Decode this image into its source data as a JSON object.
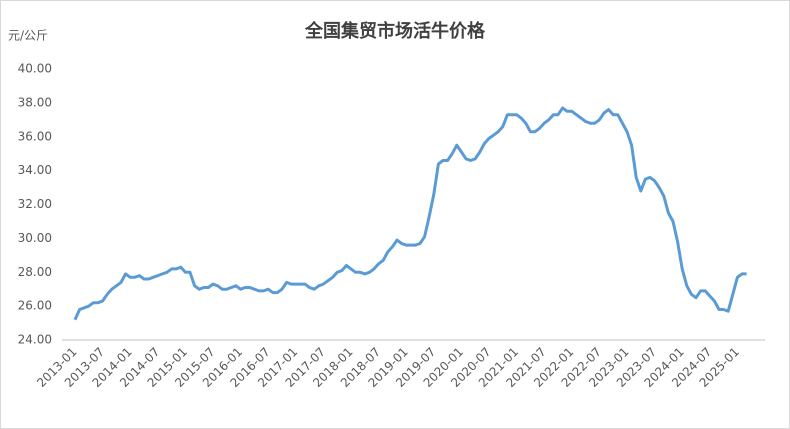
{
  "chart_data": {
    "type": "line",
    "title": "全国集贸市场活牛价格",
    "y_label": "元/公斤",
    "categories": [
      "2013-01",
      null,
      null,
      null,
      null,
      null,
      "2013-07",
      null,
      null,
      null,
      null,
      null,
      "2014-01",
      null,
      null,
      null,
      null,
      null,
      "2014-07",
      null,
      null,
      null,
      null,
      null,
      "2015-01",
      null,
      null,
      null,
      null,
      null,
      "2015-07",
      null,
      null,
      null,
      null,
      null,
      "2016-01",
      null,
      null,
      null,
      null,
      null,
      "2016-07",
      null,
      null,
      null,
      null,
      null,
      "2017-01",
      null,
      null,
      null,
      null,
      null,
      "2017-07",
      null,
      null,
      null,
      null,
      null,
      "2018-01",
      null,
      null,
      null,
      null,
      null,
      "2018-07",
      null,
      null,
      null,
      null,
      null,
      "2019-01",
      null,
      null,
      null,
      null,
      null,
      "2019-07",
      null,
      null,
      null,
      null,
      null,
      "2020-01",
      null,
      null,
      null,
      null,
      null,
      "2020-07",
      null,
      null,
      null,
      null,
      null,
      "2021-01",
      null,
      null,
      null,
      null,
      null,
      "2021-07",
      null,
      null,
      null,
      null,
      null,
      "2022-01",
      null,
      null,
      null,
      null,
      null,
      "2022-07",
      null,
      null,
      null,
      null,
      null,
      "2023-01",
      null,
      null,
      null,
      null,
      null,
      "2023-07",
      null,
      null,
      null,
      null,
      null,
      "2024-01",
      null,
      null,
      null,
      null,
      null,
      "2024-07",
      null,
      null,
      null,
      null,
      null,
      "2025-01",
      null,
      null
    ],
    "series": [
      {
        "color": "#5b9bd5",
        "values": [
          25.2,
          25.8,
          25.9,
          26.0,
          26.2,
          26.2,
          26.3,
          26.7,
          27.0,
          27.2,
          27.4,
          27.9,
          27.7,
          27.7,
          27.8,
          27.6,
          27.6,
          27.7,
          27.8,
          27.9,
          28.0,
          28.2,
          28.2,
          28.3,
          28.0,
          28.0,
          27.2,
          27.0,
          27.1,
          27.1,
          27.3,
          27.2,
          27.0,
          27.0,
          27.1,
          27.2,
          27.0,
          27.1,
          27.1,
          27.0,
          26.9,
          26.9,
          27.0,
          26.8,
          26.8,
          27.0,
          27.4,
          27.3,
          27.3,
          27.3,
          27.3,
          27.1,
          27.0,
          27.2,
          27.3,
          27.5,
          27.7,
          28.0,
          28.1,
          28.4,
          28.2,
          28.0,
          28.0,
          27.9,
          28.0,
          28.2,
          28.5,
          28.7,
          29.2,
          29.5,
          29.9,
          29.7,
          29.6,
          29.6,
          29.6,
          29.7,
          30.1,
          31.3,
          32.6,
          34.4,
          34.6,
          34.6,
          35.0,
          35.5,
          35.1,
          34.7,
          34.6,
          34.7,
          35.1,
          35.6,
          35.9,
          36.1,
          36.3,
          36.6,
          37.3,
          37.3,
          37.3,
          37.1,
          36.8,
          36.3,
          36.3,
          36.5,
          36.8,
          37.0,
          37.3,
          37.3,
          37.7,
          37.5,
          37.5,
          37.3,
          37.1,
          36.9,
          36.8,
          36.8,
          37.0,
          37.4,
          37.6,
          37.3,
          37.3,
          36.8,
          36.3,
          35.5,
          33.6,
          32.8,
          33.5,
          33.6,
          33.4,
          33.0,
          32.5,
          31.5,
          31.0,
          29.8,
          28.2,
          27.2,
          26.7,
          26.5,
          26.9,
          26.9,
          26.6,
          26.3,
          25.8,
          25.8,
          25.7,
          26.7,
          27.7,
          27.9,
          27.9
        ]
      }
    ],
    "ylim": [
      24,
      40
    ],
    "yticks": [
      {
        "value": 24,
        "label": "24.00"
      },
      {
        "value": 26,
        "label": "26.00"
      },
      {
        "value": 28,
        "label": "28.00"
      },
      {
        "value": 30,
        "label": "30.00"
      },
      {
        "value": 32,
        "label": "32.00"
      },
      {
        "value": 34,
        "label": "34.00"
      },
      {
        "value": 36,
        "label": "36.00"
      },
      {
        "value": 38,
        "label": "38.00"
      },
      {
        "value": 40,
        "label": "40.00"
      }
    ],
    "grid": false
  }
}
